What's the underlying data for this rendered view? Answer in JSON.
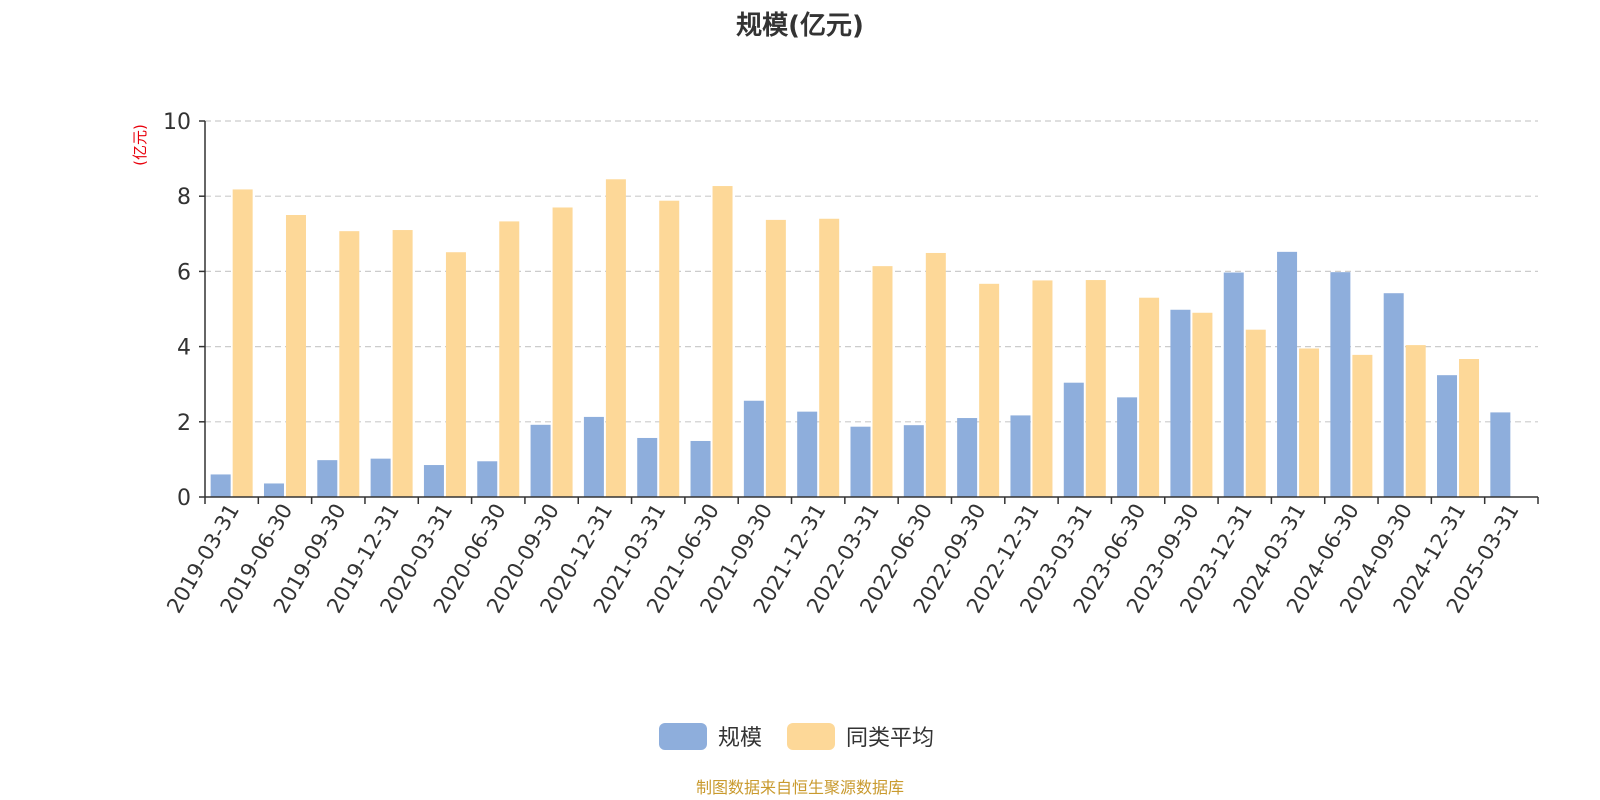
{
  "chart_data": {
    "type": "bar",
    "title": "规模(亿元)",
    "ylabel": "(亿元)",
    "ylim": [
      0,
      10
    ],
    "yticks": [
      0,
      2,
      4,
      6,
      8,
      10
    ],
    "grid": true,
    "legend_position": "bottom",
    "categories": [
      "2019-03-31",
      "2019-06-30",
      "2019-09-30",
      "2019-12-31",
      "2020-03-31",
      "2020-06-30",
      "2020-09-30",
      "2020-12-31",
      "2021-03-31",
      "2021-06-30",
      "2021-09-30",
      "2021-12-31",
      "2022-03-31",
      "2022-06-30",
      "2022-09-30",
      "2022-12-31",
      "2023-03-31",
      "2023-06-30",
      "2023-09-30",
      "2023-12-31",
      "2024-03-31",
      "2024-06-30",
      "2024-09-30",
      "2024-12-31",
      "2025-03-31"
    ],
    "series": [
      {
        "name": "规模",
        "color": "#8eaedc",
        "values": [
          0.6,
          0.36,
          0.98,
          1.02,
          0.85,
          0.95,
          1.92,
          2.13,
          1.57,
          1.49,
          2.56,
          2.27,
          1.87,
          1.91,
          2.1,
          2.17,
          3.04,
          2.65,
          4.98,
          5.97,
          6.52,
          5.98,
          5.42,
          3.24,
          2.25
        ]
      },
      {
        "name": "同类平均",
        "color": "#fdd898",
        "values": [
          8.18,
          7.5,
          7.07,
          7.1,
          6.51,
          7.33,
          7.7,
          8.45,
          7.88,
          8.27,
          7.37,
          7.4,
          6.14,
          6.49,
          5.67,
          5.76,
          5.77,
          5.3,
          4.9,
          4.45,
          3.95,
          3.78,
          4.04,
          3.67,
          null
        ]
      }
    ]
  },
  "source_text": "制图数据来自恒生聚源数据库",
  "colors": {
    "axis": "#333333",
    "grid": "#cccccc",
    "ylabel": "#e8000b",
    "source": "#c99a2e",
    "title": "#333333"
  }
}
